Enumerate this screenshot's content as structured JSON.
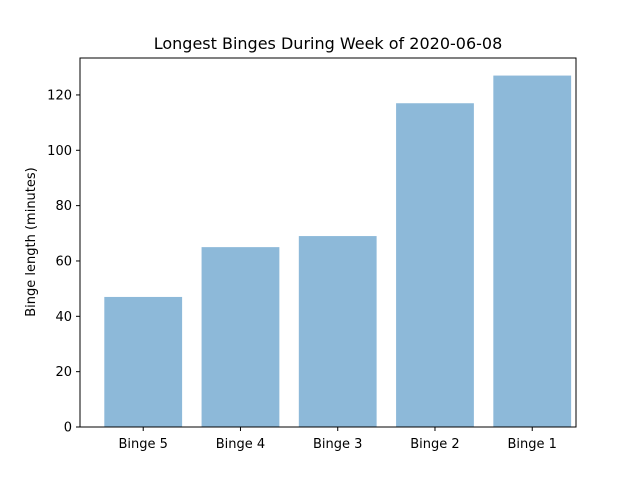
{
  "chart_data": {
    "type": "bar",
    "title": "Longest Binges During Week of 2020-06-08",
    "xlabel": "",
    "ylabel": "Binge length (minutes)",
    "categories": [
      "Binge 5",
      "Binge 4",
      "Binge 3",
      "Binge 2",
      "Binge 1"
    ],
    "values": [
      47,
      65,
      69,
      117,
      127
    ],
    "ylim": [
      0,
      133.35
    ],
    "yticks": [
      0,
      20,
      40,
      60,
      80,
      100,
      120
    ],
    "bar_color": "#8db9d9",
    "grid": false,
    "legend": "none"
  }
}
